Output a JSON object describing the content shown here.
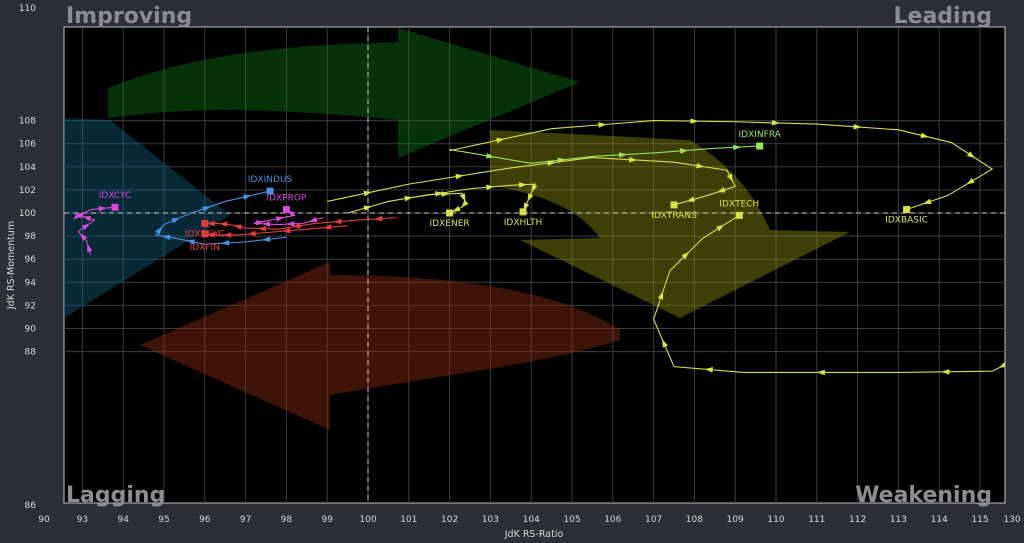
{
  "chart_data": {
    "type": "scatter",
    "subtype": "relative-rotation-graph",
    "xlabel": "JdK RS-Ratio",
    "ylabel": "JdK RS-Momentum",
    "xlim": [
      90,
      130
    ],
    "ylim": [
      86,
      110
    ],
    "x_ticks": [
      90,
      93,
      94,
      95,
      96,
      97,
      98,
      99,
      100,
      101,
      102,
      103,
      104,
      105,
      106,
      107,
      108,
      109,
      110,
      111,
      112,
      113,
      114,
      115,
      130
    ],
    "y_ticks": [
      86,
      88,
      90,
      92,
      94,
      96,
      98,
      100,
      102,
      104,
      106,
      108,
      110
    ],
    "center": [
      100,
      100
    ],
    "quadrants": {
      "top_left": "Improving",
      "top_right": "Leading",
      "bottom_left": "Lagging",
      "bottom_right": "Weakening"
    },
    "grid": true,
    "series": [
      {
        "name": "IDXINFRA",
        "color": "#9de35a",
        "points": [
          [
            102,
            105.5
          ],
          [
            104,
            104.3
          ],
          [
            105.5,
            104.9
          ],
          [
            107,
            105.2
          ],
          [
            108.5,
            105.6
          ],
          [
            109.6,
            105.8
          ]
        ]
      },
      {
        "name": "IDXBASIC",
        "color": "#d9e14a",
        "points": [
          [
            102,
            105.4
          ],
          [
            104.5,
            107.3
          ],
          [
            107,
            108
          ],
          [
            109,
            107.9
          ],
          [
            111,
            107.7
          ],
          [
            113,
            107.2
          ],
          [
            114.3,
            106.1
          ],
          [
            115.3,
            103.8
          ],
          [
            114.2,
            101.5
          ],
          [
            113.2,
            100.3
          ]
        ]
      },
      {
        "name": "IDXTRANS",
        "color": "#d9e14a",
        "points": [
          [
            99,
            101
          ],
          [
            101,
            102.5
          ],
          [
            103.5,
            103.9
          ],
          [
            105.5,
            104.8
          ],
          [
            107.5,
            104.4
          ],
          [
            108.8,
            103.7
          ],
          [
            109,
            102.3
          ],
          [
            108.3,
            101.5
          ],
          [
            107.5,
            100.7
          ]
        ]
      },
      {
        "name": "IDXTECH",
        "color": "#d9e14a",
        "points": [
          [
            115.8,
            87.2
          ],
          [
            115.3,
            86.3
          ],
          [
            113,
            86.2
          ],
          [
            109.2,
            86.2
          ],
          [
            107.5,
            86.7
          ],
          [
            107,
            90.8
          ],
          [
            107.4,
            95
          ],
          [
            108.2,
            97.8
          ],
          [
            109.1,
            99.8
          ]
        ]
      },
      {
        "name": "IDXENER",
        "color": "#d9e14a",
        "points": [
          [
            99.5,
            100
          ],
          [
            100.5,
            101
          ],
          [
            101.5,
            101.6
          ],
          [
            102.3,
            101.7
          ],
          [
            102.4,
            100.9
          ],
          [
            102.3,
            100.5
          ],
          [
            102,
            100
          ]
        ]
      },
      {
        "name": "IDXHLTH",
        "color": "#d9e14a",
        "points": [
          [
            101,
            101.3
          ],
          [
            102.5,
            102.1
          ],
          [
            103.5,
            102.4
          ],
          [
            104.1,
            102.5
          ],
          [
            104,
            101.7
          ],
          [
            103.9,
            100.9
          ],
          [
            103.8,
            100.1
          ]
        ]
      },
      {
        "name": "IDXINDUS",
        "color": "#4a90e0",
        "points": [
          [
            98,
            97.9
          ],
          [
            97,
            97.5
          ],
          [
            96,
            97.3
          ],
          [
            95.3,
            97.8
          ],
          [
            94.8,
            98.1
          ],
          [
            95,
            99
          ],
          [
            95.6,
            99.9
          ],
          [
            96.5,
            101
          ],
          [
            97.6,
            101.9
          ]
        ]
      },
      {
        "name": "IDXCYC",
        "color": "#d64ad6",
        "points": [
          [
            93.2,
            96.4
          ],
          [
            93.1,
            97.6
          ],
          [
            92.9,
            98.4
          ],
          [
            93.3,
            99.4
          ],
          [
            92.9,
            99.8
          ],
          [
            92.8,
            99.5
          ],
          [
            93.2,
            100.3
          ],
          [
            93.8,
            100.5
          ]
        ]
      },
      {
        "name": "IDXPROP",
        "color": "#d64ad6",
        "points": [
          [
            98.9,
            99.6
          ],
          [
            98.4,
            99.1
          ],
          [
            97.8,
            99
          ],
          [
            97.2,
            99.1
          ],
          [
            97.5,
            99.3
          ],
          [
            98.2,
            99.8
          ],
          [
            98,
            100.3
          ]
        ]
      },
      {
        "name": "IDXNCYC",
        "color": "#e33b3b",
        "points": [
          [
            100.7,
            99.6
          ],
          [
            99.8,
            99.4
          ],
          [
            98.7,
            99.1
          ],
          [
            97.8,
            98.6
          ],
          [
            97,
            98.7
          ],
          [
            96.6,
            99
          ],
          [
            96.3,
            99.1
          ],
          [
            96,
            99.1
          ]
        ]
      },
      {
        "name": "IDXFIN",
        "color": "#e33b3b",
        "points": [
          [
            99.5,
            98.9
          ],
          [
            98.5,
            98.6
          ],
          [
            97.5,
            98.3
          ],
          [
            96.8,
            98.1
          ],
          [
            96.3,
            98.1
          ],
          [
            96,
            98.2
          ]
        ]
      }
    ]
  }
}
